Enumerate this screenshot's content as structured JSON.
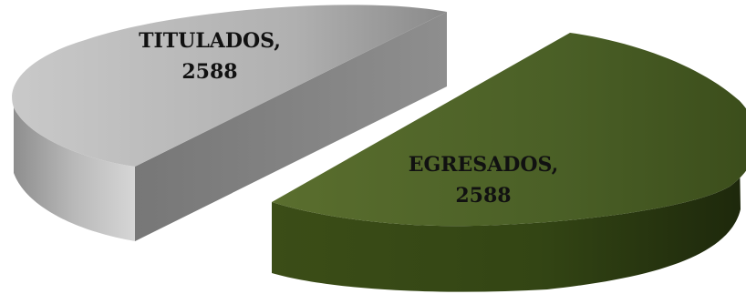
{
  "chart_data": {
    "type": "pie",
    "style": "3d-exploded",
    "categories": [
      "TITULADOS",
      "EGRESADOS"
    ],
    "values": [
      2588,
      2588
    ],
    "labels": [
      {
        "category": "TITULADOS,",
        "value": "2588"
      },
      {
        "category": "EGRESADOS,",
        "value": "2588"
      }
    ],
    "colors": {
      "TITULADOS": "#b3b3b3",
      "EGRESADOS": "#4a5f26"
    }
  }
}
